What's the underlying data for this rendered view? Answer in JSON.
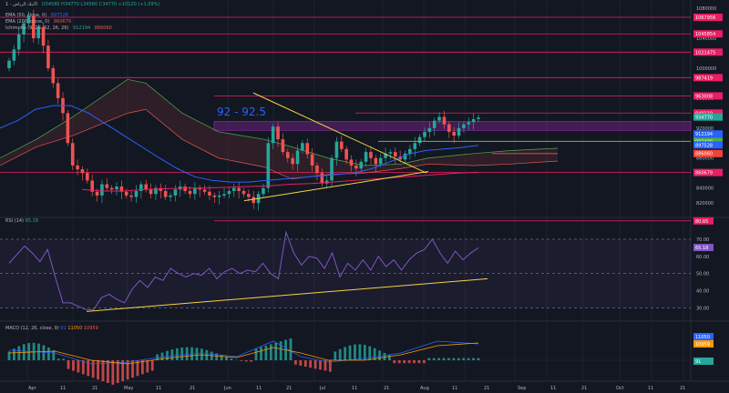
{
  "legend": {
    "symbol": "بنك الرياض · 1D",
    "ohlc": "O34580 H34770 L34580 C34770 +10120 (+1.09%)",
    "ema50": "EMA (50, close, 0)",
    "ema50_val": "897528",
    "ema200": "EMA (200, close, 0)",
    "ema200_val": "860679",
    "ichimoku": "Ichimoku (9, 26, 52, 26, 26)",
    "ichimoku_v1": "912194",
    "ichimoku_v2": "886060"
  },
  "annotation_text": "92 - 92.5",
  "rsi": {
    "label": "RSI (14)",
    "value": "65.18"
  },
  "macd": {
    "label": "MACD (12, 26, close, 9)",
    "v1": "91",
    "v2": "11050",
    "v3": "10959"
  },
  "price_axis": {
    "ticks": [
      "1080000",
      "1040000",
      "1000000",
      "960000",
      "920000",
      "880000",
      "840000",
      "820000"
    ]
  },
  "price_labels": [
    {
      "text": "1067956",
      "color": "#e91e63"
    },
    {
      "text": "1045854",
      "color": "#e91e63"
    },
    {
      "text": "1021475",
      "color": "#e91e63"
    },
    {
      "text": "987419",
      "color": "#e91e63"
    },
    {
      "text": "963008",
      "color": "#e91e63"
    },
    {
      "text": "940110",
      "color": "#e91e63"
    },
    {
      "text": "934770",
      "color": "#26a69a"
    },
    {
      "text": "912194",
      "color": "#2962ff"
    },
    {
      "text": "902409",
      "color": "#4caf50"
    },
    {
      "text": "897528",
      "color": "#2962ff"
    },
    {
      "text": "886060",
      "color": "#f44336"
    },
    {
      "text": "860679",
      "color": "#e91e63"
    }
  ],
  "rsi_axis": {
    "ticks": [
      "70.00",
      "60.00",
      "50.00",
      "40.00",
      "30.00"
    ],
    "labels": [
      "80.65",
      "65.18"
    ]
  },
  "macd_axis": {
    "labels": [
      "11050",
      "10959",
      "91"
    ]
  },
  "time_axis": {
    "labels": [
      "Apr",
      "11",
      "21",
      "May",
      "11",
      "21",
      "Jun",
      "11",
      "21",
      "Jul",
      "11",
      "21",
      "Aug",
      "11",
      "21",
      "Sep",
      "11",
      "21",
      "Oct",
      "11",
      "21"
    ]
  },
  "colors": {
    "up": "#26a69a",
    "down": "#ef5350",
    "ema50": "#2962ff",
    "ema200": "#e91e63",
    "resistance": "#e91e63",
    "triangle": "#f5d442",
    "rsi": "#7e57c2",
    "zone": "#9c27b0",
    "annotation": "#2962ff"
  },
  "chart_data": {
    "type": "candlestick",
    "series": [
      {
        "name": "Price",
        "closes": [
          1010,
          1025,
          1045,
          1060,
          1070,
          1040,
          1055,
          1030,
          1000,
          980,
          960,
          940,
          900,
          870,
          865,
          860,
          850,
          835,
          830,
          845,
          840,
          838,
          842,
          835,
          830,
          828,
          836,
          845,
          838,
          832,
          840,
          836,
          828,
          830,
          838,
          842,
          836,
          832,
          840,
          838,
          835,
          830,
          828,
          830,
          832,
          836,
          840,
          836,
          832,
          828,
          820,
          832,
          840,
          900,
          922,
          905,
          888,
          880,
          872,
          890,
          900,
          885,
          870,
          860,
          846,
          850,
          880,
          902,
          892,
          878,
          870,
          866,
          875,
          888,
          880,
          872,
          880,
          886,
          888,
          882,
          878,
          886,
          892,
          900,
          908,
          915,
          920,
          930,
          935,
          925,
          915,
          910,
          920,
          925,
          928,
          932,
          934
        ]
      },
      {
        "name": "EMA (50, close, 0)",
        "values": [
          920,
          930,
          945,
          950,
          950,
          940,
          925,
          910,
          895,
          880,
          866,
          855,
          850,
          848,
          848,
          850,
          852,
          854,
          856,
          858,
          860,
          866,
          875,
          885,
          890,
          892,
          894,
          897
        ]
      },
      {
        "name": "EMA (200, close, 0)",
        "values": [
          838,
          836,
          836,
          838,
          839,
          840,
          840,
          841,
          842,
          843,
          845,
          846,
          848,
          850,
          852,
          854,
          856,
          858,
          860,
          861
        ]
      },
      {
        "name": "RSI (14)",
        "values": [
          56,
          61,
          66,
          62,
          57,
          64,
          48,
          33,
          33,
          31,
          29,
          29,
          36,
          38,
          35,
          33,
          41,
          46,
          42,
          48,
          46,
          53,
          50,
          48,
          50,
          49,
          53,
          47,
          51,
          53,
          50,
          52,
          51,
          56,
          50,
          47,
          74,
          62,
          55,
          60,
          59,
          53,
          62,
          48,
          56,
          52,
          58,
          52,
          60,
          54,
          58,
          52,
          58,
          62,
          64,
          70,
          62,
          56,
          63,
          58,
          62,
          65
        ]
      }
    ],
    "rsi_range": [
      25,
      80
    ],
    "rsi_levels": [
      70,
      50,
      30
    ],
    "resistance_levels": [
      1067956,
      1045854,
      1021475,
      987419,
      963008,
      940110,
      860679
    ],
    "annotation": "92 - 92.5"
  }
}
